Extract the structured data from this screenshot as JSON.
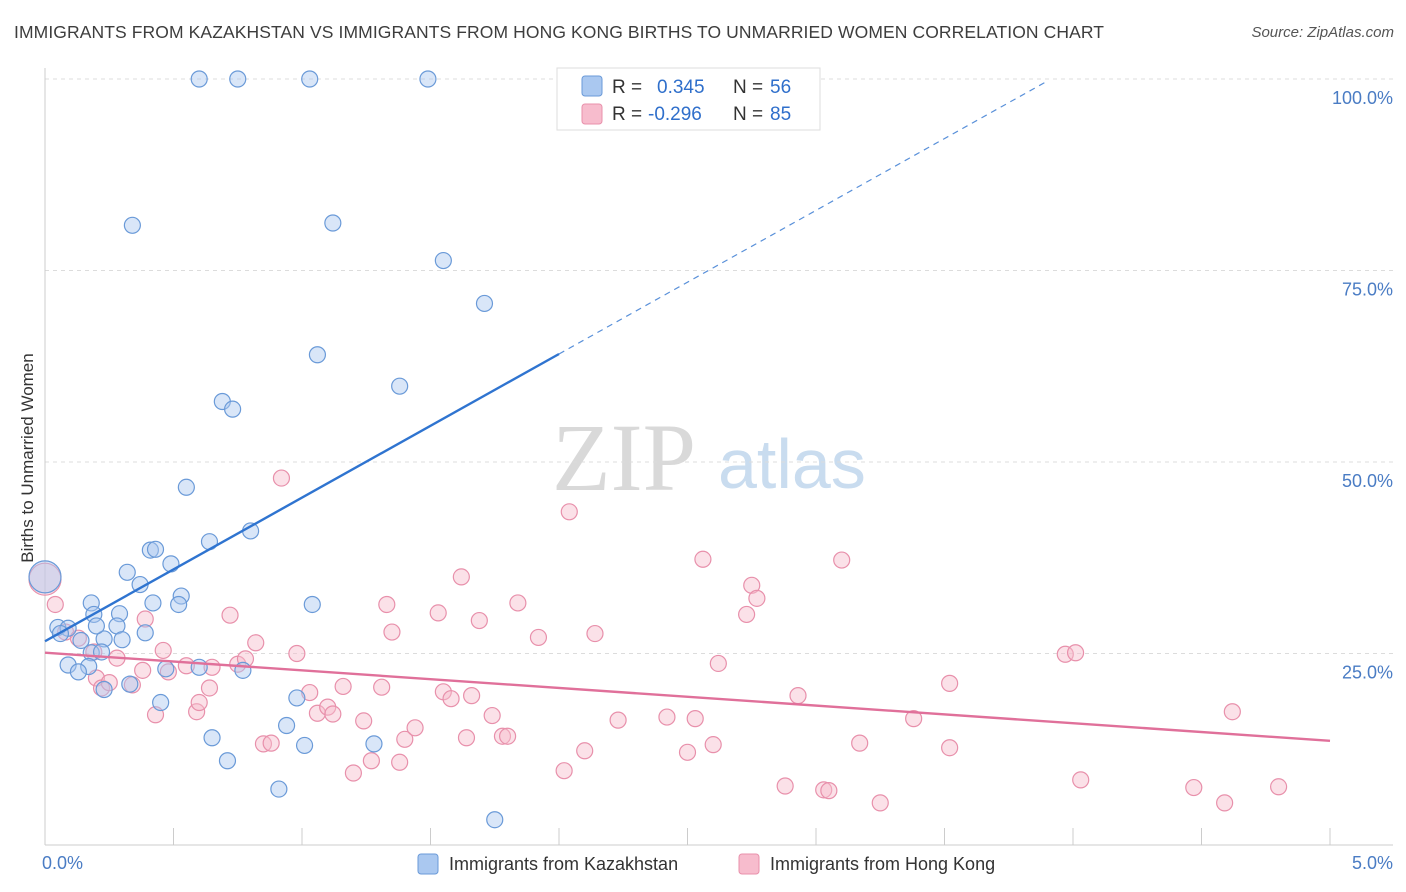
{
  "title": "IMMIGRANTS FROM KAZAKHSTAN VS IMMIGRANTS FROM HONG KONG BIRTHS TO UNMARRIED WOMEN CORRELATION CHART",
  "source": "Source: ZipAtlas.com",
  "watermark": {
    "zip": "ZIP",
    "atlas": "atlas"
  },
  "colors": {
    "blue_fill": "#aac8f0",
    "blue_stroke": "#6a9ad8",
    "blue_line": "#2f74d0",
    "pink_fill": "#f7bccd",
    "pink_stroke": "#e890ab",
    "pink_line": "#e0709a",
    "grid": "#dcdcdc",
    "tick_text": "#4a7cc4"
  },
  "legend": {
    "r_label": "R =",
    "n_label": "N =",
    "rows": [
      {
        "r": "0.345",
        "n": "56"
      },
      {
        "r": "-0.296",
        "n": "85"
      }
    ]
  },
  "chart_data": {
    "type": "scatter",
    "title": "IMMIGRANTS FROM KAZAKHSTAN VS IMMIGRANTS FROM HONG KONG BIRTHS TO UNMARRIED WOMEN CORRELATION CHART",
    "xlabel": "",
    "ylabel": "Births to Unmarried Women",
    "xlim": [
      0,
      5
    ],
    "ylim": [
      0,
      105
    ],
    "x_tick_labels": [
      "0.0%",
      "5.0%"
    ],
    "y_ticks": [
      25,
      50,
      75,
      100
    ],
    "y_tick_labels": [
      "25.0%",
      "50.0%",
      "75.0%",
      "100.0%"
    ],
    "grid": true,
    "legend_position": "top-center",
    "series": [
      {
        "name": "Immigrants from Kazakhstan",
        "r": 0.345,
        "n": 56,
        "trend": {
          "x0": 0.0,
          "y0": 26.6,
          "x1": 2.0,
          "y1": 64.1,
          "dashed_to_x": 3.9
        },
        "points": [
          [
            0.6,
            100
          ],
          [
            0.75,
            100
          ],
          [
            1.03,
            100
          ],
          [
            1.49,
            100
          ],
          [
            0.34,
            80.9
          ],
          [
            1.12,
            81.2
          ],
          [
            1.55,
            76.3
          ],
          [
            1.71,
            70.7
          ],
          [
            1.06,
            64
          ],
          [
            1.38,
            59.9
          ],
          [
            0.69,
            57.9
          ],
          [
            0.73,
            56.9
          ],
          [
            0.55,
            46.7
          ],
          [
            0.64,
            39.6
          ],
          [
            0.8,
            41
          ],
          [
            0.41,
            38.5
          ],
          [
            0.43,
            38.6
          ],
          [
            0.49,
            36.7
          ],
          [
            0.32,
            35.6
          ],
          [
            0.37,
            34
          ],
          [
            0.0,
            35
          ],
          [
            0.42,
            31.6
          ],
          [
            0.53,
            32.5
          ],
          [
            0.52,
            31.4
          ],
          [
            1.04,
            31.4
          ],
          [
            0.18,
            31.6
          ],
          [
            0.29,
            30.2
          ],
          [
            0.19,
            30.1
          ],
          [
            0.05,
            28.4
          ],
          [
            0.09,
            28.3
          ],
          [
            0.06,
            27.6
          ],
          [
            0.28,
            28.6
          ],
          [
            0.39,
            27.7
          ],
          [
            0.23,
            26.9
          ],
          [
            0.3,
            26.8
          ],
          [
            0.14,
            26.7
          ],
          [
            0.2,
            28.6
          ],
          [
            0.18,
            25.1
          ],
          [
            0.22,
            25.2
          ],
          [
            0.09,
            23.5
          ],
          [
            0.17,
            23.3
          ],
          [
            0.13,
            22.6
          ],
          [
            0.47,
            23
          ],
          [
            0.6,
            23.2
          ],
          [
            0.77,
            22.8
          ],
          [
            0.33,
            21
          ],
          [
            0.23,
            20.3
          ],
          [
            0.45,
            18.6
          ],
          [
            0.98,
            19.2
          ],
          [
            0.94,
            15.6
          ],
          [
            0.65,
            14
          ],
          [
            1.01,
            13
          ],
          [
            1.28,
            13.2
          ],
          [
            0.71,
            11
          ],
          [
            0.91,
            7.3
          ],
          [
            1.75,
            3.3
          ]
        ]
      },
      {
        "name": "Immigrants from Hong Kong",
        "r": -0.296,
        "n": 85,
        "trend": {
          "x0": 0.0,
          "y0": 25.1,
          "x1": 5.0,
          "y1": 13.6
        },
        "points": [
          [
            0.0,
            34.7
          ],
          [
            0.04,
            31.4
          ],
          [
            0.08,
            27.8
          ],
          [
            0.13,
            27
          ],
          [
            0.19,
            25.2
          ],
          [
            0.2,
            21.8
          ],
          [
            0.22,
            20.5
          ],
          [
            0.25,
            21.2
          ],
          [
            0.28,
            24.4
          ],
          [
            0.34,
            20.9
          ],
          [
            0.38,
            22.8
          ],
          [
            0.39,
            29.5
          ],
          [
            0.43,
            17
          ],
          [
            0.46,
            25.4
          ],
          [
            0.48,
            22.6
          ],
          [
            0.55,
            23.4
          ],
          [
            0.59,
            17.4
          ],
          [
            0.6,
            18.6
          ],
          [
            0.64,
            20.5
          ],
          [
            0.65,
            23.2
          ],
          [
            0.72,
            30
          ],
          [
            0.75,
            23.6
          ],
          [
            0.78,
            24.3
          ],
          [
            0.82,
            26.4
          ],
          [
            0.85,
            13.2
          ],
          [
            0.88,
            13.3
          ],
          [
            0.92,
            47.9
          ],
          [
            0.98,
            25
          ],
          [
            1.03,
            19.9
          ],
          [
            1.06,
            17.2
          ],
          [
            1.1,
            18
          ],
          [
            1.12,
            17.1
          ],
          [
            1.16,
            20.7
          ],
          [
            1.2,
            9.4
          ],
          [
            1.24,
            16.2
          ],
          [
            1.27,
            11
          ],
          [
            1.31,
            20.6
          ],
          [
            1.33,
            31.4
          ],
          [
            1.35,
            27.8
          ],
          [
            1.38,
            10.8
          ],
          [
            1.4,
            13.8
          ],
          [
            1.44,
            15.3
          ],
          [
            1.53,
            30.3
          ],
          [
            1.55,
            20
          ],
          [
            1.58,
            19.1
          ],
          [
            1.62,
            35
          ],
          [
            1.64,
            14
          ],
          [
            1.66,
            19.5
          ],
          [
            1.69,
            29.3
          ],
          [
            1.74,
            16.9
          ],
          [
            1.78,
            14.2
          ],
          [
            1.84,
            31.6
          ],
          [
            1.8,
            14.2
          ],
          [
            1.92,
            27.1
          ],
          [
            2.02,
            9.7
          ],
          [
            2.04,
            43.5
          ],
          [
            2.1,
            12.3
          ],
          [
            2.14,
            27.6
          ],
          [
            2.23,
            16.3
          ],
          [
            2.42,
            16.7
          ],
          [
            2.5,
            12.1
          ],
          [
            2.53,
            16.5
          ],
          [
            2.56,
            37.3
          ],
          [
            2.6,
            13.1
          ],
          [
            2.62,
            23.7
          ],
          [
            2.73,
            30.1
          ],
          [
            2.75,
            33.9
          ],
          [
            2.77,
            32.2
          ],
          [
            2.88,
            7.7
          ],
          [
            2.93,
            19.5
          ],
          [
            3.03,
            7.2
          ],
          [
            3.05,
            7.1
          ],
          [
            3.1,
            37.2
          ],
          [
            3.17,
            13.3
          ],
          [
            3.25,
            5.5
          ],
          [
            3.38,
            16.5
          ],
          [
            3.52,
            21.1
          ],
          [
            3.52,
            12.7
          ],
          [
            3.97,
            24.9
          ],
          [
            4.01,
            25.1
          ],
          [
            4.03,
            8.5
          ],
          [
            4.47,
            7.5
          ],
          [
            4.59,
            5.5
          ],
          [
            4.62,
            17.4
          ],
          [
            4.8,
            7.6
          ]
        ]
      }
    ]
  }
}
